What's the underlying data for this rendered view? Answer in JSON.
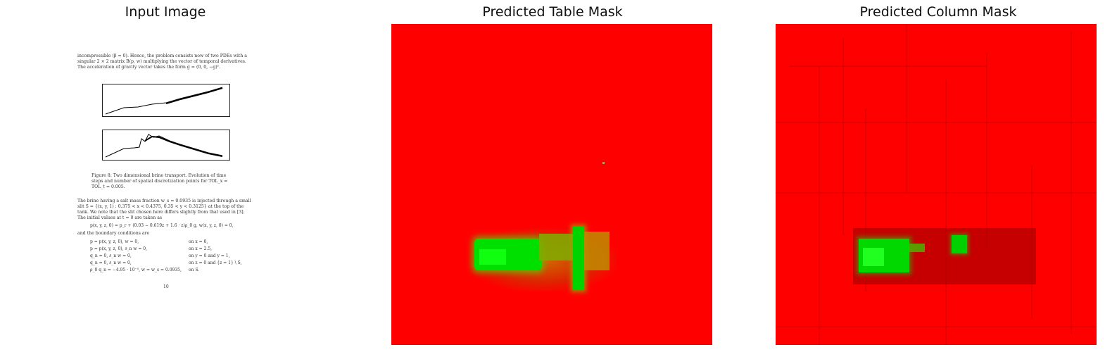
{
  "titles": {
    "input": "Input Image",
    "table_mask": "Predicted Table Mask",
    "column_mask": "Predicted Column Mask"
  },
  "document": {
    "intro": [
      "incompressible (β = 0). Hence, the problem consists now of two PDEs with a",
      "singular 2 × 2 matrix B(p, w) multiplying the vector of temporal derivatives.",
      "The acceleration of gravity vector takes the form g = (0, 0, −g)ᵀ."
    ],
    "caption": [
      "Figure 8: Two dimensional brine transport. Evolution of time",
      "steps and number of spatial discretization points for TOL_x =",
      "TOL_t = 0.005."
    ],
    "para": [
      "The brine having a salt mass fraction w_s = 0.0935 is injected through a small",
      "slit S = {(x, y, 1) : 0.375 < x < 0.4375, 0.35 < y < 0.3125} at the top of the",
      "tank. We note that the slit chosen here differs slightly from that used in [3].",
      "The initial values at t = 0 are taken as"
    ],
    "equation": "p(x, y, z, 0) = p_r + (0.03 − 0.619z + 1.6 · z)ρ_0 g,   w(x, y, z, 0) = 0,",
    "boundary_intro": "and the boundary conditions are",
    "conditions_left": [
      "p = p(x, y, z, 0),  w = 0,",
      "p = p(x, y, z, 0),  ∂_n w = 0,",
      "q_n = 0,  ∂_n w = 0,",
      "q_n = 0,  ∂_n w = 0,",
      "ρ_0 q_n = −4.95 · 10⁻⁵,  w = w_s = 0.0935,"
    ],
    "conditions_right": [
      "on x = 0,",
      "on x = 2.5,",
      "on y = 0 and y = 1,",
      "on z = 0 and {z = 1} \\ S,",
      "on S."
    ],
    "page_number": "10"
  }
}
